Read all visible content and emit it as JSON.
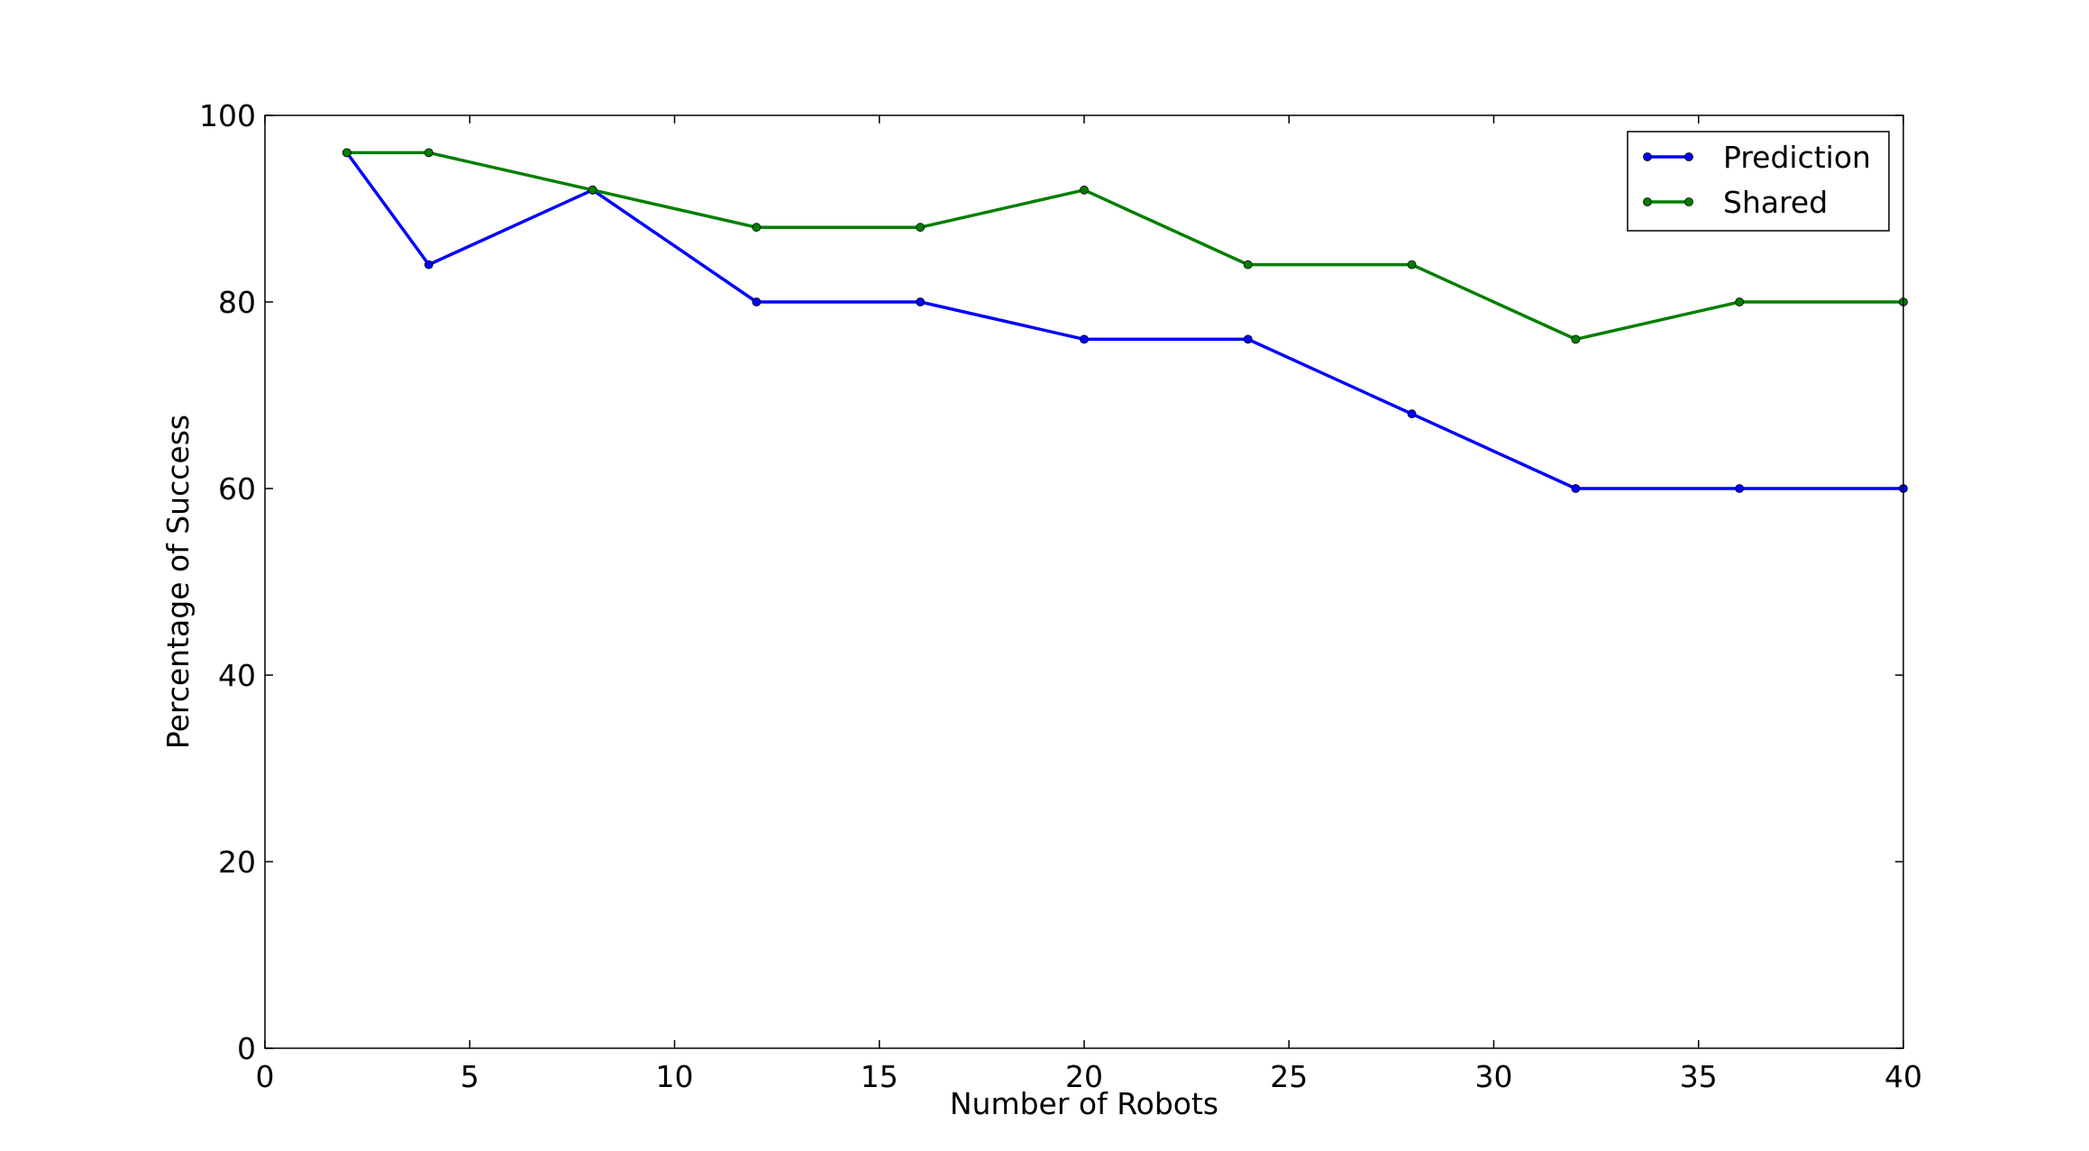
{
  "chart_data": {
    "type": "line",
    "title": "",
    "xlabel": "Number of Robots",
    "ylabel": "Percentage of Success",
    "xlim": [
      0,
      40
    ],
    "ylim": [
      0,
      100
    ],
    "xticks": [
      "0",
      "5",
      "10",
      "15",
      "20",
      "25",
      "30",
      "35",
      "40"
    ],
    "yticks": [
      "0",
      "20",
      "40",
      "60",
      "80",
      "100"
    ],
    "grid": false,
    "legend_position": "top-right",
    "x": [
      2,
      4,
      8,
      12,
      16,
      20,
      24,
      28,
      32,
      36,
      40
    ],
    "series": [
      {
        "name": "Prediction",
        "color": "#0000ff",
        "values": [
          96,
          84,
          92,
          80,
          80,
          76,
          76,
          68,
          60,
          60,
          60
        ]
      },
      {
        "name": "Shared",
        "color": "#007f00",
        "values": [
          96,
          96,
          92,
          88,
          88,
          92,
          84,
          84,
          76,
          80,
          80
        ]
      }
    ]
  }
}
